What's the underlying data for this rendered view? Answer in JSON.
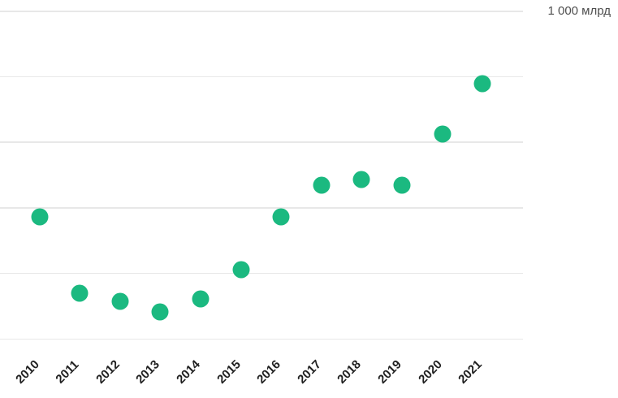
{
  "chart_data": {
    "type": "scatter",
    "title": "",
    "categories": [
      "2010",
      "2011",
      "2012",
      "2013",
      "2014",
      "2015",
      "2016",
      "2017",
      "2018",
      "2019",
      "2020",
      "2021"
    ],
    "values": [
      370,
      138,
      114,
      81,
      119,
      210,
      370,
      468,
      485,
      468,
      624,
      778
    ],
    "xlabel": "",
    "ylabel": "",
    "y_axis": {
      "min": 0,
      "max": 1000,
      "grid_step": 200,
      "max_label": "1 000 млрд"
    },
    "grid": "horizontal",
    "legend_position": "none",
    "colors": {
      "dot": "#1bb980",
      "gridline": "#e8e8e8",
      "axis_label": "#4f4f4f",
      "tick_label": "#1f1f1f"
    }
  }
}
